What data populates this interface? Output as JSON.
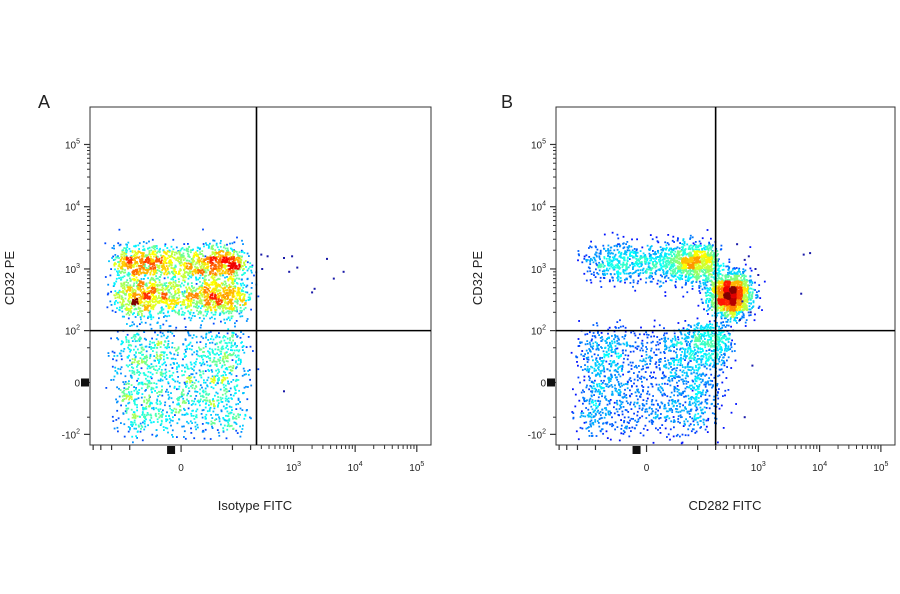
{
  "chart_data": [
    {
      "type": "scatter",
      "panel_label": "A",
      "xlabel": "Isotype FITC",
      "ylabel": "CD32 PE",
      "x_ticks": [
        {
          "value": 0,
          "base": "0",
          "exp": ""
        },
        {
          "value": 1000,
          "base": "10",
          "exp": "3"
        },
        {
          "value": 10000,
          "base": "10",
          "exp": "4"
        },
        {
          "value": 100000,
          "base": "10",
          "exp": "5"
        }
      ],
      "y_ticks": [
        {
          "value": -100,
          "base": "-10",
          "exp": "2"
        },
        {
          "value": 0,
          "base": "0",
          "exp": ""
        },
        {
          "value": 100,
          "base": "10",
          "exp": "2"
        },
        {
          "value": 1000,
          "base": "10",
          "exp": "3"
        },
        {
          "value": 10000,
          "base": "10",
          "exp": "4"
        },
        {
          "value": 100000,
          "base": "10",
          "exp": "5"
        }
      ],
      "gates": {
        "x": 250,
        "y": 100
      },
      "populations": [
        {
          "x": 0,
          "y": 0,
          "count": 1400,
          "sx": 75,
          "sy": 45
        },
        {
          "x": 0,
          "y": 350,
          "count": 1400,
          "sx": 75,
          "sy": 0.17
        },
        {
          "x": 0,
          "y": 1250,
          "count": 1300,
          "sx": 75,
          "sy": 0.15
        }
      ],
      "outliers": [
        [
          380,
          1600
        ],
        [
          700,
          1500
        ],
        [
          950,
          1600
        ],
        [
          850,
          900
        ],
        [
          1150,
          1050
        ],
        [
          2000,
          420
        ],
        [
          2200,
          480
        ],
        [
          3500,
          1450
        ],
        [
          4500,
          700
        ],
        [
          6500,
          900
        ],
        [
          310,
          1000
        ],
        [
          300,
          1700
        ],
        [
          700,
          -10
        ]
      ],
      "scale_notes": "biexponential display, roughly linear near zero"
    },
    {
      "type": "scatter",
      "panel_label": "B",
      "xlabel": "CD282 FITC",
      "ylabel": "CD32 PE",
      "x_ticks": [
        {
          "value": 0,
          "base": "0",
          "exp": ""
        },
        {
          "value": 1000,
          "base": "10",
          "exp": "3"
        },
        {
          "value": 10000,
          "base": "10",
          "exp": "4"
        },
        {
          "value": 100000,
          "base": "10",
          "exp": "5"
        }
      ],
      "y_ticks": [
        {
          "value": -100,
          "base": "-10",
          "exp": "2"
        },
        {
          "value": 0,
          "base": "0",
          "exp": ""
        },
        {
          "value": 100,
          "base": "10",
          "exp": "2"
        },
        {
          "value": 1000,
          "base": "10",
          "exp": "3"
        },
        {
          "value": 10000,
          "base": "10",
          "exp": "4"
        },
        {
          "value": 100000,
          "base": "10",
          "exp": "5"
        }
      ],
      "gates": {
        "x": 200,
        "y": 100
      },
      "populations": [
        {
          "x": 0,
          "y": 0,
          "count": 1400,
          "sx": 85,
          "sy": 45
        },
        {
          "x": 50,
          "y": 1250,
          "count": 1500,
          "sx": 80,
          "sy": 0.16
        },
        {
          "x": 350,
          "y": 380,
          "count": 1500,
          "sx": 0.17,
          "sy": 0.18
        },
        {
          "x": 150,
          "y": 60,
          "count": 500,
          "sx": 100,
          "sy": 40
        }
      ],
      "outliers": [
        [
          600,
          1400
        ],
        [
          700,
          1600
        ],
        [
          900,
          1000
        ],
        [
          5500,
          1700
        ],
        [
          7000,
          1800
        ],
        [
          5000,
          400
        ],
        [
          600,
          -50
        ],
        [
          800,
          20
        ],
        [
          750,
          200
        ],
        [
          500,
          150
        ],
        [
          1000,
          800
        ],
        [
          450,
          2500
        ],
        [
          550,
          300
        ]
      ],
      "scale_notes": "biexponential display, roughly linear near zero"
    }
  ]
}
